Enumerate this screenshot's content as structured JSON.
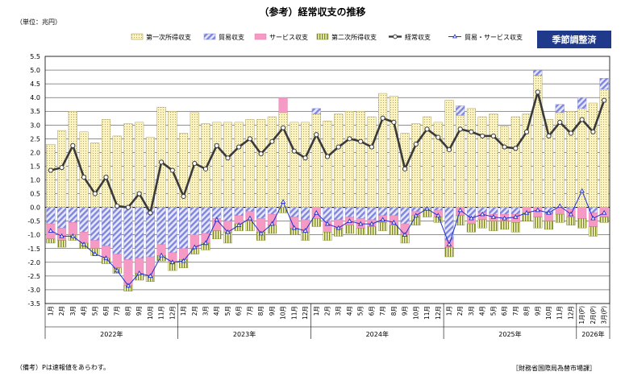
{
  "title": "（参考）経常収支の推移",
  "unit_label": "（単位：兆円）",
  "badge": "季節調整済",
  "note": "（備考）Pは速報値をあらわす。",
  "source": "［財務省国際局為替市場課］",
  "colors": {
    "primary_income": "#fbf3c0",
    "trade": "#b4b8ec",
    "services": "#f59ac5",
    "secondary_income": "#8d9a2c",
    "current_account": "#3a3a3a",
    "trade_services": "#1f2fd0",
    "badge": "#1f3a8a"
  },
  "chart_data": {
    "type": "bar",
    "ylim": [
      -3.5,
      5.5
    ],
    "yticks": [
      "5.5",
      "5.0",
      "4.5",
      "4.0",
      "3.5",
      "3.0",
      "2.5",
      "2.0",
      "1.5",
      "1.0",
      "0.5",
      "0.0",
      "-0.5",
      "-1.0",
      "-1.5",
      "-2.0",
      "-2.5",
      "-3.0",
      "-3.5"
    ],
    "categories": [
      "1月",
      "2月",
      "3月",
      "4月",
      "5月",
      "6月",
      "7月",
      "8月",
      "9月",
      "10月",
      "11月",
      "12月",
      "1月",
      "2月",
      "3月",
      "4月",
      "5月",
      "6月",
      "7月",
      "8月",
      "9月",
      "10月",
      "11月",
      "12月",
      "1月",
      "2月",
      "3月",
      "4月",
      "5月",
      "6月",
      "7月",
      "8月",
      "9月",
      "10月",
      "11月",
      "12月",
      "1月",
      "2月",
      "3月",
      "4月",
      "5月",
      "6月",
      "7月",
      "8月",
      "9月",
      "10月",
      "11月",
      "12月",
      "1月(P)",
      "2月(P)",
      "3月(P)"
    ],
    "years": [
      {
        "label": "2022年",
        "start": 0,
        "count": 12
      },
      {
        "label": "2023年",
        "start": 12,
        "count": 12
      },
      {
        "label": "2024年",
        "start": 24,
        "count": 12
      },
      {
        "label": "2025年",
        "start": 36,
        "count": 12
      },
      {
        "label": "2026年",
        "start": 48,
        "count": 3
      }
    ],
    "series": [
      {
        "name": "第一次所得収支",
        "values": [
          2.3,
          2.8,
          3.5,
          2.75,
          2.35,
          3.2,
          2.6,
          3.05,
          3.1,
          2.55,
          3.65,
          3.5,
          2.7,
          3.45,
          3.05,
          3.1,
          3.1,
          3.1,
          3.2,
          3.2,
          3.3,
          3.45,
          3.1,
          3.1,
          3.4,
          3.15,
          3.4,
          3.5,
          3.5,
          3.3,
          4.15,
          4.05,
          2.7,
          3.05,
          3.3,
          3.1,
          3.9,
          3.35,
          3.6,
          3.3,
          3.4,
          2.95,
          3.3,
          3.4,
          4.8,
          3.2,
          3.45,
          3.5,
          3.6,
          3.8,
          4.3
        ]
      },
      {
        "name": "貿易収支",
        "values": [
          -0.6,
          -0.75,
          -0.55,
          -0.9,
          -1.2,
          -1.4,
          -1.7,
          -1.9,
          -1.85,
          -1.8,
          -1.35,
          -1.65,
          -1.5,
          -1.0,
          -0.95,
          -0.4,
          -0.5,
          -0.3,
          -0.15,
          -0.4,
          -0.25,
          0.0,
          -0.35,
          -0.45,
          0.2,
          -0.5,
          -0.45,
          -0.35,
          -0.4,
          -0.45,
          -0.3,
          -0.3,
          -0.6,
          -0.15,
          -0.05,
          -0.1,
          -1.2,
          0.35,
          -0.35,
          -0.2,
          -0.25,
          -0.25,
          -0.25,
          0.0,
          0.2,
          -0.25,
          0.3,
          -0.05,
          0.4,
          -0.2,
          0.4
        ]
      },
      {
        "name": "サービス収支",
        "values": [
          -0.55,
          -0.45,
          -0.45,
          -0.4,
          -0.3,
          -0.45,
          -0.5,
          -0.95,
          -0.55,
          -0.7,
          -0.4,
          -0.35,
          -0.4,
          -0.5,
          -0.35,
          -0.45,
          -0.4,
          -0.3,
          -0.35,
          -0.5,
          -0.4,
          0.55,
          -0.4,
          -0.45,
          -0.4,
          -0.4,
          -0.3,
          -0.3,
          -0.35,
          -0.25,
          -0.25,
          -0.35,
          -0.4,
          -0.15,
          0.0,
          -0.25,
          -0.25,
          -0.3,
          -0.25,
          -0.25,
          -0.25,
          -0.25,
          -0.3,
          -0.2,
          -0.35,
          -0.25,
          -0.25,
          -0.3,
          -0.4,
          -0.5,
          -0.35
        ]
      },
      {
        "name": "第二次所得収支",
        "values": [
          -0.15,
          -0.25,
          -0.2,
          -0.2,
          -0.25,
          -0.2,
          -0.2,
          -0.2,
          -0.25,
          -0.2,
          -0.2,
          -0.3,
          -0.3,
          -0.2,
          -0.25,
          -0.3,
          -0.4,
          -0.25,
          -0.35,
          -0.3,
          -0.3,
          -0.2,
          -0.25,
          -0.3,
          -0.3,
          -0.3,
          -0.3,
          -0.3,
          -0.25,
          -0.3,
          -0.3,
          -0.35,
          -0.3,
          -0.35,
          -0.3,
          -0.2,
          -0.35,
          -0.35,
          -0.3,
          -0.3,
          -0.35,
          -0.3,
          -0.35,
          -0.3,
          -0.4,
          -0.3,
          -0.3,
          -0.3,
          -0.35,
          -0.35,
          -0.2
        ]
      },
      {
        "name": "経常収支",
        "values": [
          1.35,
          1.45,
          2.25,
          1.1,
          0.5,
          1.1,
          0.05,
          0.0,
          0.5,
          -0.2,
          1.65,
          1.35,
          0.4,
          1.6,
          1.4,
          2.25,
          1.8,
          2.2,
          2.5,
          1.95,
          2.4,
          2.9,
          2.05,
          1.8,
          2.65,
          1.85,
          2.2,
          2.5,
          2.4,
          2.2,
          3.25,
          3.1,
          1.4,
          2.3,
          2.85,
          2.55,
          2.1,
          2.85,
          2.75,
          2.6,
          2.6,
          2.2,
          2.15,
          2.75,
          4.2,
          2.6,
          3.1,
          2.7,
          3.2,
          2.75,
          3.9
        ]
      },
      {
        "name": "貿易・サービス収支",
        "values": [
          -0.85,
          -1.05,
          -1.05,
          -1.35,
          -1.7,
          -1.85,
          -2.3,
          -2.85,
          -2.4,
          -2.5,
          -1.75,
          -2.0,
          -1.95,
          -1.45,
          -1.3,
          -0.45,
          -0.9,
          -0.65,
          -0.4,
          -0.95,
          -0.6,
          0.2,
          -0.75,
          -0.85,
          -0.2,
          -0.6,
          -0.75,
          -0.5,
          -0.6,
          -0.6,
          -0.45,
          -0.55,
          -1.0,
          -0.3,
          -0.05,
          -0.3,
          -1.35,
          -0.1,
          -0.4,
          -0.25,
          -0.35,
          -0.4,
          -0.35,
          -0.2,
          -0.1,
          -0.2,
          0.05,
          -0.25,
          0.6,
          -0.4,
          -0.2
        ]
      }
    ]
  }
}
